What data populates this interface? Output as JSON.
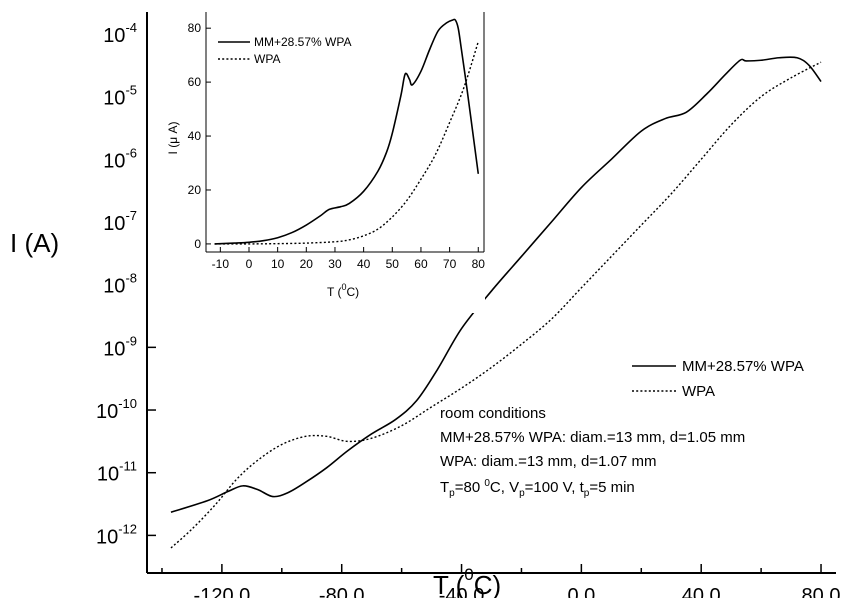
{
  "chart_data": [
    {
      "type": "line",
      "title": "",
      "xlabel": "T (0C)",
      "xlabel_parts": {
        "main": "T (",
        "sup": "0",
        "end": "C)"
      },
      "ylabel": "I (A)",
      "xlim": [
        -145,
        85
      ],
      "ylim_log10": [
        -12.6,
        -3.65
      ],
      "y_scale": "log",
      "x_ticks": [
        -120,
        -80,
        -40,
        0,
        40,
        80
      ],
      "x_tick_labels": [
        "-120,0",
        "-80,0",
        "-40,0",
        "0,0",
        "40,0",
        "80,0"
      ],
      "y_tick_exponents": [
        -12,
        -11,
        -10,
        -9,
        -8,
        -7,
        -6,
        -5,
        -4
      ],
      "y_tick_base": "10",
      "legend_position": "right",
      "series": [
        {
          "name": "MM+28.57% WPA",
          "style": "solid",
          "x": [
            -137,
            -125,
            -118,
            -113,
            -108,
            -103,
            -98,
            -92,
            -85,
            -78,
            -70,
            -62,
            -55,
            -48,
            -40,
            -30,
            -20,
            -10,
            0,
            10,
            20,
            28,
            35,
            42,
            48,
            53,
            55,
            60,
            66,
            72,
            76,
            80
          ],
          "y_log10": [
            -11.63,
            -11.45,
            -11.3,
            -11.21,
            -11.27,
            -11.38,
            -11.32,
            -11.15,
            -10.92,
            -10.65,
            -10.38,
            -10.15,
            -9.85,
            -9.35,
            -8.7,
            -8.1,
            -7.55,
            -7.0,
            -6.45,
            -6.0,
            -5.55,
            -5.35,
            -5.25,
            -4.95,
            -4.65,
            -4.42,
            -4.43,
            -4.42,
            -4.38,
            -4.38,
            -4.5,
            -4.76
          ]
        },
        {
          "name": "WPA",
          "style": "dotted",
          "x": [
            -137,
            -130,
            -122,
            -115,
            -108,
            -100,
            -92,
            -85,
            -78,
            -70,
            -60,
            -50,
            -40,
            -30,
            -20,
            -10,
            0,
            10,
            20,
            30,
            40,
            50,
            60,
            70,
            80
          ],
          "y_log10": [
            -12.2,
            -11.9,
            -11.5,
            -11.1,
            -10.8,
            -10.55,
            -10.42,
            -10.42,
            -10.5,
            -10.45,
            -10.25,
            -9.95,
            -9.65,
            -9.32,
            -8.95,
            -8.55,
            -8.05,
            -7.55,
            -7.05,
            -6.55,
            -6.0,
            -5.45,
            -5.0,
            -4.7,
            -4.45
          ]
        }
      ],
      "annotations": {
        "line1": "room conditions",
        "line2": "MM+28.57% WPA: diam.=13 mm, d=1.05 mm",
        "line3": "WPA: diam.=13 mm, d=1.07 mm",
        "line4_parts": [
          "T",
          "p",
          "=80 ",
          "0",
          "C, V",
          "p",
          "=100 V, t",
          "p",
          "=5 min"
        ]
      }
    },
    {
      "type": "line",
      "title": "",
      "xlabel": "T (0C)",
      "xlabel_parts": {
        "main": "T (",
        "sup": "0",
        "end": "C)"
      },
      "ylabel": "I (μ A)",
      "xlim": [
        -15,
        82
      ],
      "ylim": [
        -3,
        86
      ],
      "x_ticks": [
        -10,
        0,
        10,
        20,
        30,
        40,
        50,
        60,
        70,
        80
      ],
      "y_ticks": [
        0,
        20,
        40,
        60,
        80
      ],
      "legend_position": "top-left",
      "series": [
        {
          "name": "MM+28.57% WPA",
          "style": "solid",
          "x": [
            -12,
            -5,
            0,
            5,
            10,
            15,
            20,
            25,
            28,
            32,
            35,
            40,
            45,
            48,
            50,
            53,
            54.5,
            56,
            57,
            60,
            63,
            66,
            69,
            71,
            72,
            73,
            74,
            76,
            78,
            80
          ],
          "y": [
            0,
            0.3,
            0.6,
            1.2,
            2.3,
            4.2,
            7,
            10.5,
            12.8,
            13.8,
            15,
            19.5,
            27,
            34,
            41,
            55,
            63,
            61,
            59,
            64,
            72,
            79,
            82,
            83,
            83,
            80,
            73,
            58,
            42,
            26
          ]
        },
        {
          "name": "WPA",
          "style": "dotted",
          "x": [
            -12,
            0,
            10,
            20,
            30,
            35,
            40,
            45,
            50,
            55,
            60,
            65,
            70,
            75,
            80
          ],
          "y": [
            0,
            0,
            0.1,
            0.3,
            0.8,
            1.5,
            3,
            5.5,
            10,
            16,
            24,
            33,
            45,
            58,
            75
          ]
        }
      ]
    }
  ]
}
